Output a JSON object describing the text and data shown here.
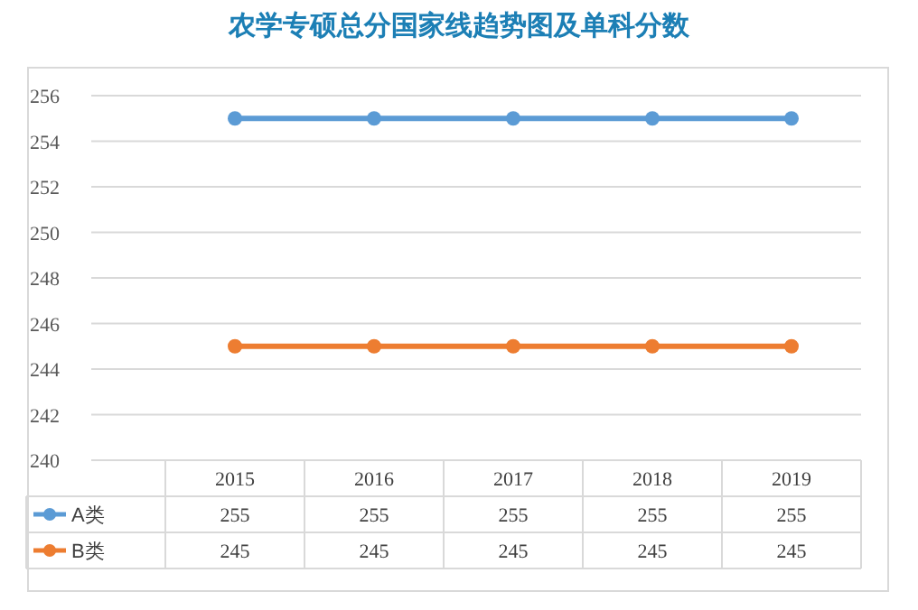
{
  "chart_data": {
    "type": "line",
    "title": "农学专硕总分国家线趋势图及单科分数",
    "categories": [
      "2015",
      "2016",
      "2017",
      "2018",
      "2019"
    ],
    "series": [
      {
        "name": "A类",
        "color": "#5b9bd5",
        "values": [
          255,
          255,
          255,
          255,
          255
        ]
      },
      {
        "name": "B类",
        "color": "#ed7d31",
        "values": [
          245,
          245,
          245,
          245,
          245
        ]
      }
    ],
    "ylim": [
      240,
      256
    ],
    "yticks": [
      240,
      242,
      244,
      246,
      248,
      250,
      252,
      254,
      256
    ],
    "grid": "y",
    "legend": "bottom",
    "marker": "circle",
    "data_labels": true
  }
}
